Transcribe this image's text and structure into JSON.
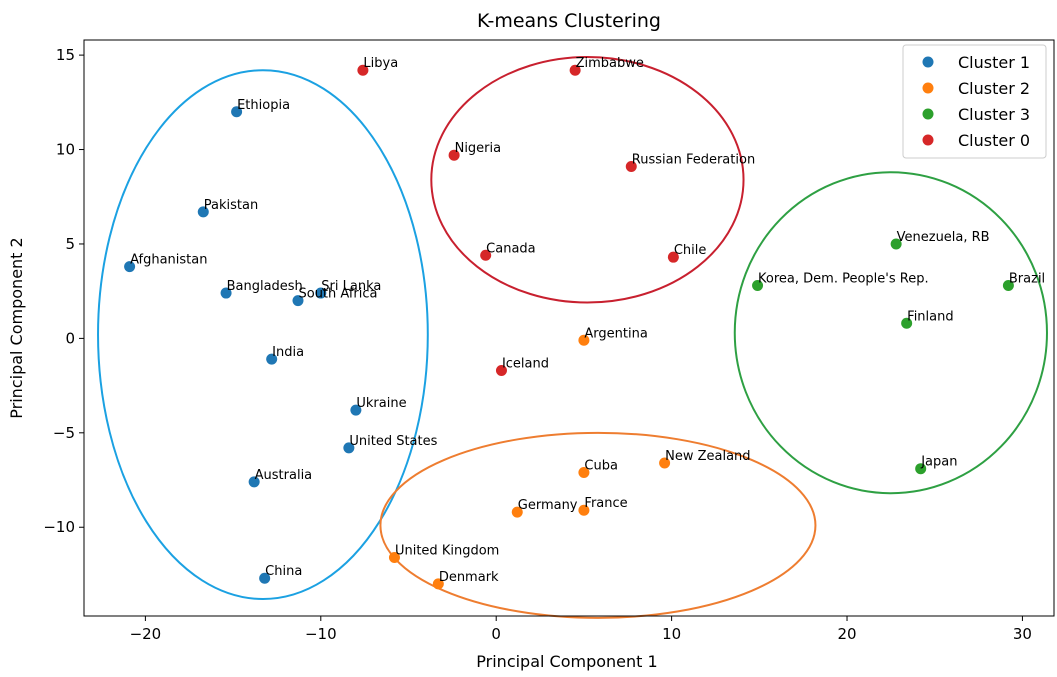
{
  "chart_data": {
    "type": "scatter",
    "title": "K-means Clustering",
    "xlabel": "Principal Component 1",
    "ylabel": "Principal Component 2",
    "xlim": [
      -23.5,
      31.8
    ],
    "ylim": [
      -14.7,
      15.8
    ],
    "xticks": [
      -20,
      -10,
      0,
      10,
      20,
      30
    ],
    "yticks": [
      -10,
      -5,
      0,
      5,
      10,
      15
    ],
    "grid": false,
    "legend_position": "top-right",
    "series": [
      {
        "name": "Cluster 1",
        "color": "#1f77b4",
        "points": [
          {
            "label": "Ethiopia",
            "x": -14.8,
            "y": 12.0
          },
          {
            "label": "Pakistan",
            "x": -16.7,
            "y": 6.7
          },
          {
            "label": "Afghanistan",
            "x": -20.9,
            "y": 3.8
          },
          {
            "label": "Bangladesh",
            "x": -15.4,
            "y": 2.4
          },
          {
            "label": "Sri Lanka",
            "x": -10.0,
            "y": 2.4
          },
          {
            "label": "South Africa",
            "x": -11.3,
            "y": 2.0
          },
          {
            "label": "India",
            "x": -12.8,
            "y": -1.1
          },
          {
            "label": "Ukraine",
            "x": -8.0,
            "y": -3.8
          },
          {
            "label": "United States",
            "x": -8.4,
            "y": -5.8
          },
          {
            "label": "Australia",
            "x": -13.8,
            "y": -7.6
          },
          {
            "label": "China",
            "x": -13.2,
            "y": -12.7
          }
        ]
      },
      {
        "name": "Cluster 2",
        "color": "#ff7f0e",
        "points": [
          {
            "label": "Argentina",
            "x": 5.0,
            "y": -0.1
          },
          {
            "label": "New Zealand",
            "x": 9.6,
            "y": -6.6
          },
          {
            "label": "Cuba",
            "x": 5.0,
            "y": -7.1
          },
          {
            "label": "Germany",
            "x": 1.2,
            "y": -9.2
          },
          {
            "label": "France",
            "x": 5.0,
            "y": -9.1
          },
          {
            "label": "United Kingdom",
            "x": -5.8,
            "y": -11.6
          },
          {
            "label": "Denmark",
            "x": -3.3,
            "y": -13.0
          }
        ]
      },
      {
        "name": "Cluster 3",
        "color": "#2ca02c",
        "points": [
          {
            "label": "Venezuela, RB",
            "x": 22.8,
            "y": 5.0
          },
          {
            "label": "Korea, Dem. People's Rep.",
            "x": 14.9,
            "y": 2.8
          },
          {
            "label": "Brazil",
            "x": 29.2,
            "y": 2.8
          },
          {
            "label": "Finland",
            "x": 23.4,
            "y": 0.8
          },
          {
            "label": "Japan",
            "x": 24.2,
            "y": -6.9
          }
        ]
      },
      {
        "name": "Cluster 0",
        "color": "#d62728",
        "points": [
          {
            "label": "Libya",
            "x": -7.6,
            "y": 14.2
          },
          {
            "label": "Zimbabwe",
            "x": 4.5,
            "y": 14.2
          },
          {
            "label": "Nigeria",
            "x": -2.4,
            "y": 9.7
          },
          {
            "label": "Russian Federation",
            "x": 7.7,
            "y": 9.1
          },
          {
            "label": "Canada",
            "x": -0.6,
            "y": 4.4
          },
          {
            "label": "Chile",
            "x": 10.1,
            "y": 4.3
          },
          {
            "label": "Iceland",
            "x": 0.3,
            "y": -1.7
          }
        ]
      }
    ],
    "annotations": [
      {
        "shape": "ellipse",
        "color": "#1ba1e2",
        "cx": -13.3,
        "cy": 0.2,
        "rx": 9.4,
        "ry": 14.0
      },
      {
        "shape": "ellipse",
        "color": "#c8202f",
        "cx": 5.2,
        "cy": 8.4,
        "rx": 8.9,
        "ry": 6.5
      },
      {
        "shape": "ellipse",
        "color": "#ee7d30",
        "cx": 5.8,
        "cy": -9.9,
        "rx": 12.4,
        "ry": 4.9
      },
      {
        "shape": "ellipse",
        "color": "#2ea043",
        "cx": 22.5,
        "cy": 0.3,
        "rx": 8.9,
        "ry": 8.5
      }
    ]
  }
}
